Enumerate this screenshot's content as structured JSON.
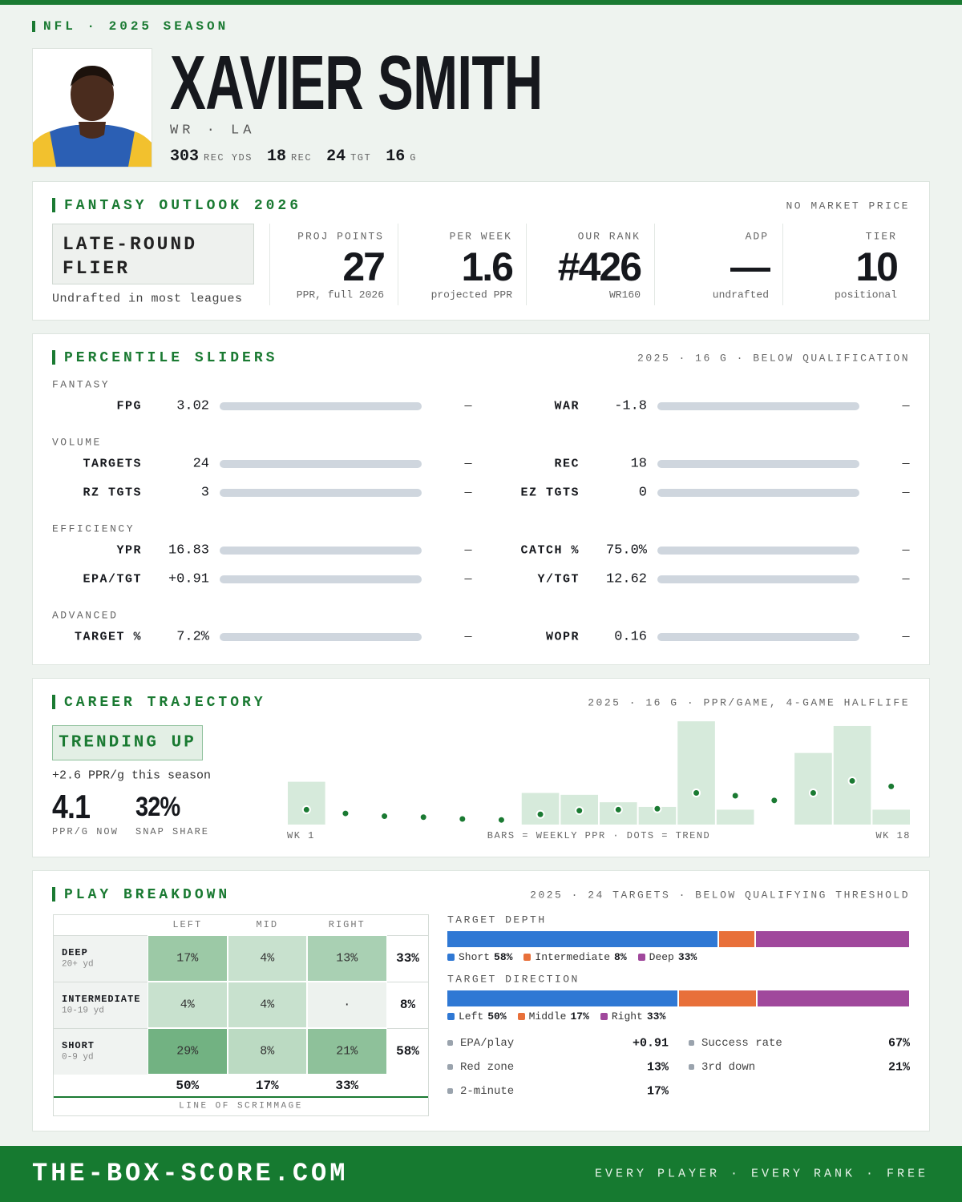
{
  "header": {
    "league": "NFL · 2025 SEASON",
    "name": "XAVIER SMITH",
    "position": "WR · LA",
    "stats": [
      {
        "value": "303",
        "label": "REC YDS"
      },
      {
        "value": "18",
        "label": "REC"
      },
      {
        "value": "24",
        "label": "TGT"
      },
      {
        "value": "16",
        "label": "G"
      }
    ]
  },
  "outlook": {
    "title": "FANTASY OUTLOOK 2026",
    "note": "NO MARKET PRICE",
    "badge": "LATE-ROUND FLIER",
    "badge_note": "Undrafted in most leagues",
    "metrics": [
      {
        "label": "PROJ POINTS",
        "value": "27",
        "note": "PPR, full 2026"
      },
      {
        "label": "PER WEEK",
        "value": "1.6",
        "note": "projected PPR"
      },
      {
        "label": "OUR RANK",
        "value": "#426",
        "note": "WR160"
      },
      {
        "label": "ADP",
        "value": "—",
        "note": "undrafted"
      },
      {
        "label": "TIER",
        "value": "10",
        "note": "positional"
      }
    ]
  },
  "sliders": {
    "title": "PERCENTILE SLIDERS",
    "note": "2025 · 16 G · BELOW QUALIFICATION",
    "groups": [
      {
        "name": "FANTASY",
        "rows": [
          [
            {
              "label": "FPG",
              "value": "3.02",
              "percentile": "—"
            },
            {
              "label": "WAR",
              "value": "-1.8",
              "percentile": "—"
            }
          ]
        ]
      },
      {
        "name": "VOLUME",
        "rows": [
          [
            {
              "label": "TARGETS",
              "value": "24",
              "percentile": "—"
            },
            {
              "label": "REC",
              "value": "18",
              "percentile": "—"
            }
          ],
          [
            {
              "label": "RZ TGTS",
              "value": "3",
              "percentile": "—"
            },
            {
              "label": "EZ TGTS",
              "value": "0",
              "percentile": "—"
            }
          ]
        ]
      },
      {
        "name": "EFFICIENCY",
        "rows": [
          [
            {
              "label": "YPR",
              "value": "16.83",
              "percentile": "—"
            },
            {
              "label": "CATCH %",
              "value": "75.0%",
              "percentile": "—"
            }
          ],
          [
            {
              "label": "EPA/TGT",
              "value": "+0.91",
              "percentile": "—"
            },
            {
              "label": "Y/TGT",
              "value": "12.62",
              "percentile": "—"
            }
          ]
        ]
      },
      {
        "name": "ADVANCED",
        "rows": [
          [
            {
              "label": "TARGET %",
              "value": "7.2%",
              "percentile": "—"
            },
            {
              "label": "WOPR",
              "value": "0.16",
              "percentile": "—"
            }
          ]
        ]
      }
    ]
  },
  "trajectory": {
    "title": "CAREER TRAJECTORY",
    "note": "2025 · 16 G · PPR/GAME, 4-GAME HALFLIFE",
    "badge": "TRENDING UP",
    "subtitle": "+2.6 PPR/g this season",
    "stats": [
      {
        "value": "4.1",
        "label": "PPR/G NOW"
      },
      {
        "value": "32%",
        "label": "SNAP SHARE"
      }
    ],
    "chart": {
      "type": "bar",
      "caption": "BARS = WEEKLY PPR · DOTS = TREND",
      "categories": [
        "WK 1",
        null,
        null,
        null,
        null,
        null,
        null,
        null,
        null,
        null,
        null,
        null,
        null,
        null,
        null,
        "WK 18"
      ],
      "ylim": [
        0,
        11.2
      ],
      "weekly": [
        4.6,
        0,
        0,
        0,
        0,
        0,
        3.4,
        3.2,
        2.4,
        1.9,
        11.1,
        1.6,
        0,
        7.7,
        10.6,
        1.6
      ],
      "trend": [
        1.6,
        1.2,
        0.9,
        0.8,
        0.6,
        0.5,
        1.1,
        1.5,
        1.6,
        1.7,
        3.4,
        3.1,
        2.6,
        3.4,
        4.7,
        4.1
      ],
      "bar_color": "#d6eadb",
      "dot_color": "#1a7a32"
    }
  },
  "breakdown": {
    "title": "PLAY BREAKDOWN",
    "note": "2025 · 24 TARGETS · BELOW QUALIFYING THRESHOLD",
    "grid": {
      "columns": [
        "LEFT",
        "MID",
        "RIGHT"
      ],
      "rows": [
        {
          "name": "DEEP",
          "range": "20+ yd",
          "cells": [
            "17%",
            "4%",
            "13%"
          ],
          "total": "33%"
        },
        {
          "name": "INTERMEDIATE",
          "range": "10-19 yd",
          "cells": [
            "4%",
            "4%",
            "·"
          ],
          "total": "8%"
        },
        {
          "name": "SHORT",
          "range": "0-9 yd",
          "cells": [
            "29%",
            "8%",
            "21%"
          ],
          "total": "58%"
        }
      ],
      "column_totals": [
        "50%",
        "17%",
        "33%"
      ],
      "footer": "LINE OF SCRIMMAGE"
    },
    "depth": {
      "title": "TARGET DEPTH",
      "segments": [
        {
          "name": "Short",
          "value": 58,
          "label": "58%",
          "color": "#2f78d4"
        },
        {
          "name": "Intermediate",
          "value": 8,
          "label": "8%",
          "color": "#e8703a"
        },
        {
          "name": "Deep",
          "value": 33,
          "label": "33%",
          "color": "#a0489c"
        }
      ]
    },
    "direction": {
      "title": "TARGET DIRECTION",
      "segments": [
        {
          "name": "Left",
          "value": 50,
          "label": "50%",
          "color": "#2f78d4"
        },
        {
          "name": "Middle",
          "value": 17,
          "label": "17%",
          "color": "#e8703a"
        },
        {
          "name": "Right",
          "value": 33,
          "label": "33%",
          "color": "#a0489c"
        }
      ]
    },
    "metrics": [
      {
        "label": "EPA/play",
        "value": "+0.91"
      },
      {
        "label": "Success rate",
        "value": "67%"
      },
      {
        "label": "Red zone",
        "value": "13%"
      },
      {
        "label": "3rd down",
        "value": "21%"
      },
      {
        "label": "2-minute",
        "value": "17%"
      }
    ]
  },
  "footer": {
    "site": "THE-BOX-SCORE.COM",
    "tagline": "EVERY PLAYER · EVERY RANK · FREE"
  }
}
